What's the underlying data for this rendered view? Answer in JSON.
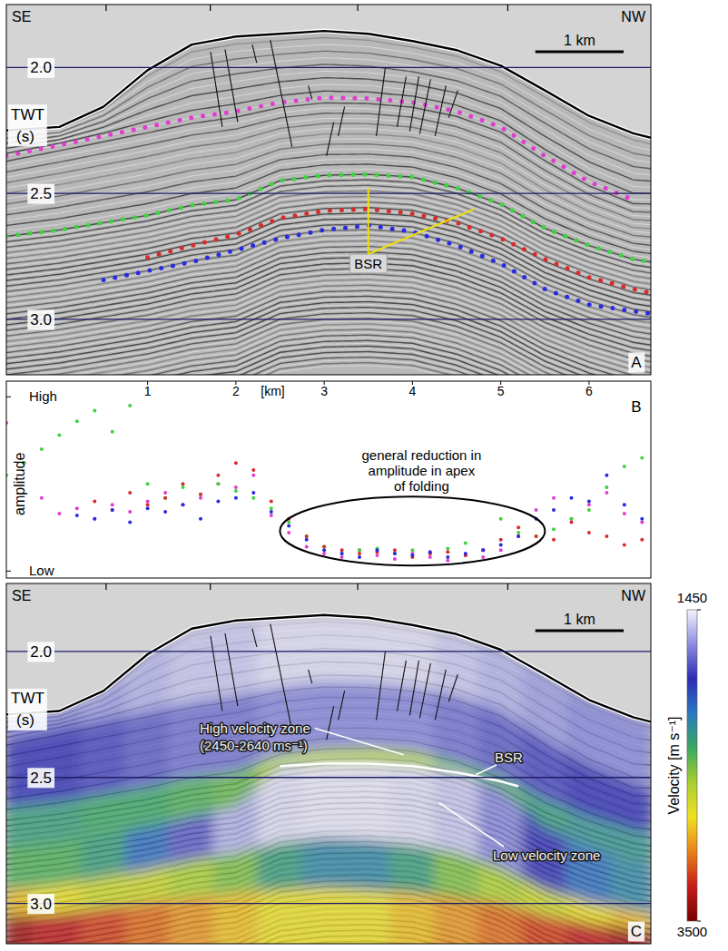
{
  "chart_data": [
    {
      "type": "section",
      "panel_label": "A",
      "direction_left": "SE",
      "direction_right": "NW",
      "y_label": "TWT (s)",
      "scale_bar": {
        "label": "1 km",
        "length": 1
      },
      "xlim": [
        -0.6,
        6.7
      ],
      "ylim": [
        1.75,
        3.22
      ],
      "xticks": [
        0.53,
        1.71,
        3.38,
        5.08
      ],
      "yticks": [
        {
          "value": 2,
          "label": "2.0"
        },
        {
          "value": 2.5,
          "label": "2.5"
        },
        {
          "value": 3,
          "label": "3.0"
        }
      ],
      "tick_labels": "y",
      "grid": true,
      "x": [
        -0.6,
        0,
        0.5,
        1,
        1.5,
        2,
        2.5,
        3,
        3.5,
        4,
        4.5,
        5,
        5.5,
        6,
        6.5,
        6.7
      ],
      "seafloor": [
        2.25,
        2.236,
        2.156,
        2.011,
        1.909,
        1.877,
        1.866,
        1.855,
        1.866,
        1.895,
        1.931,
        1.993,
        2.091,
        2.192,
        2.261,
        2.279
      ],
      "series": [
        {
          "color": "#e03cd0",
          "marker": "dot",
          "values": [
            2.351,
            2.308,
            2.272,
            2.236,
            2.199,
            2.174,
            2.138,
            2.12,
            2.123,
            2.138,
            2.174,
            2.236,
            2.351,
            2.453,
            2.525,
            null
          ]
        },
        {
          "color": "#3fd23f",
          "marker": "dot",
          "values": [
            2.67,
            2.645,
            2.616,
            2.587,
            2.547,
            2.525,
            2.449,
            2.428,
            2.424,
            2.435,
            2.478,
            2.543,
            2.638,
            2.707,
            2.761,
            2.772
          ]
        },
        {
          "color": "#d62c2c",
          "marker": "dot",
          "values": [
            null,
            null,
            null,
            2.754,
            2.707,
            2.663,
            2.598,
            2.569,
            2.562,
            2.58,
            2.616,
            2.678,
            2.761,
            2.833,
            2.88,
            2.895
          ]
        },
        {
          "color": "#2a2ae0",
          "marker": "dot",
          "values": [
            null,
            null,
            2.844,
            2.808,
            2.772,
            2.725,
            2.678,
            2.645,
            2.627,
            2.652,
            2.707,
            2.779,
            2.88,
            2.942,
            2.967,
            2.978
          ]
        }
      ],
      "faults": [
        [
          1.713,
          1.938,
          1.846,
          2.236
        ],
        [
          1.877,
          1.928,
          2.021,
          2.217
        ],
        [
          2.185,
          1.909,
          2.236,
          1.982
        ],
        [
          2.39,
          1.891,
          2.636,
          2.315
        ],
        [
          2.821,
          2.072,
          2.862,
          2.127
        ],
        [
          3.108,
          2.217,
          3.026,
          2.351
        ],
        [
          3.231,
          2.156,
          3.159,
          2.272
        ],
        [
          3.692,
          2.0,
          3.59,
          2.272
        ],
        [
          3.928,
          2.036,
          3.826,
          2.236
        ],
        [
          4.072,
          2.036,
          3.969,
          2.254
        ],
        [
          4.205,
          2.047,
          4.082,
          2.264
        ],
        [
          4.379,
          2.072,
          4.256,
          2.272
        ],
        [
          4.513,
          2.091,
          4.41,
          2.199
        ]
      ],
      "annotations": [
        {
          "text": "BSR",
          "x": [
            3.5,
            4.7
          ],
          "y": [
            2.478,
            2.562
          ]
        }
      ]
    },
    {
      "type": "scatter",
      "panel_label": "B",
      "x_label": "[km]",
      "y_label": "amplitude",
      "xlim": [
        -0.6,
        6.7
      ],
      "ylim": [
        -0.04,
        1.09
      ],
      "xticks": [
        1,
        2,
        3,
        4,
        5,
        6
      ],
      "yticks": [
        {
          "value": 0,
          "label": "Low"
        },
        {
          "value": 1,
          "label": "High"
        }
      ],
      "tick_labels": true,
      "x": [
        -0.6,
        -0.4,
        -0.2,
        0,
        0.2,
        0.4,
        0.6,
        0.8,
        1,
        1.2,
        1.4,
        1.6,
        1.8,
        2,
        2.2,
        2.4,
        2.6,
        2.8,
        3,
        3.2,
        3.4,
        3.6,
        3.8,
        4,
        4.2,
        4.4,
        4.6,
        4.8,
        5,
        5.2,
        5.4,
        5.6,
        5.8,
        6,
        6.2,
        6.4,
        6.6
      ],
      "series": [
        {
          "color": "#e03cd0",
          "marker": "dot",
          "values": [
            0.85,
            0.62,
            0.42,
            0.33,
            0.36,
            0.3,
            0.38,
            0.34,
            0.4,
            0.45,
            0.38,
            0.42,
            0.5,
            0.48,
            0.55,
            0.32,
            0.22,
            0.14,
            0.1,
            0.08,
            0.12,
            0.09,
            0.07,
            0.1,
            0.08,
            0.06,
            0.09,
            0.08,
            0.12,
            0.2,
            0.35,
            0.42,
            0.3,
            0.38,
            0.45,
            0.33,
            0.28
          ]
        },
        {
          "color": "#3fd23f",
          "marker": "dot",
          "values": [
            0.55,
            0.62,
            0.7,
            0.78,
            0.86,
            0.92,
            0.8,
            0.95,
            0.5,
            0.42,
            0.48,
            0.44,
            0.5,
            0.46,
            0.42,
            0.36,
            0.28,
            0.2,
            0.14,
            0.1,
            0.12,
            0.13,
            0.1,
            0.12,
            0.1,
            0.13,
            0.16,
            0.12,
            0.3,
            0.22,
            0.2,
            0.24,
            0.3,
            0.35,
            0.48,
            0.6,
            0.65
          ]
        },
        {
          "color": "#d62c2c",
          "marker": "dot",
          "values": [
            null,
            null,
            null,
            null,
            null,
            0.4,
            0.35,
            0.45,
            0.38,
            0.42,
            0.5,
            0.44,
            0.55,
            0.62,
            0.58,
            0.4,
            0.3,
            0.2,
            0.14,
            0.12,
            0.1,
            0.11,
            0.12,
            0.08,
            0.1,
            0.11,
            0.09,
            0.12,
            0.18,
            0.25,
            0.2,
            0.18,
            0.28,
            0.22,
            0.2,
            0.15,
            0.18
          ]
        },
        {
          "color": "#2a2ae0",
          "marker": "dot",
          "values": [
            null,
            null,
            null,
            null,
            0.32,
            0.3,
            0.35,
            0.28,
            0.36,
            0.34,
            0.38,
            0.3,
            0.4,
            0.42,
            0.45,
            0.34,
            0.26,
            0.18,
            0.12,
            0.1,
            0.08,
            0.12,
            0.1,
            0.09,
            0.11,
            0.08,
            0.1,
            0.12,
            0.15,
            0.2,
            0.3,
            0.35,
            0.42,
            0.4,
            0.55,
            0.38,
            0.3
          ]
        }
      ],
      "annotations": [
        {
          "text": "general reduction in amplitude in apex of folding",
          "x": 4.0,
          "y": 0.23
        }
      ]
    },
    {
      "type": "section",
      "panel_label": "C",
      "direction_left": "SE",
      "direction_right": "NW",
      "y_label": "TWT (s)",
      "scale_bar": {
        "label": "1 km",
        "length": 1
      },
      "xlim": [
        -0.6,
        6.7
      ],
      "ylim": [
        1.73,
        3.16
      ],
      "xticks": [
        0.53,
        1.71,
        3.38,
        5.08
      ],
      "yticks": [
        {
          "value": 2,
          "label": "2.0"
        },
        {
          "value": 2.5,
          "label": "2.5"
        },
        {
          "value": 3,
          "label": "3.0"
        }
      ],
      "tick_labels": "y",
      "grid": true,
      "x": [
        -0.6,
        0,
        0.5,
        1,
        1.5,
        2,
        2.5,
        3,
        3.5,
        4,
        4.5,
        5,
        5.5,
        6,
        6.5,
        6.7
      ],
      "velocity_layers": [
        {
          "base": [
            2.351,
            2.308,
            2.272,
            2.236,
            2.199,
            2.174,
            2.138,
            2.12,
            2.123,
            2.138,
            2.174,
            2.236,
            2.351,
            2.453,
            2.525,
            2.55
          ],
          "velocity": [
            1700,
            1700,
            1650,
            1600,
            1550,
            1550,
            1500,
            1500,
            1500,
            1500,
            1550,
            1600,
            1650,
            1700,
            1700,
            1700
          ]
        },
        {
          "base": [
            2.62,
            2.6,
            2.57,
            2.54,
            2.5,
            2.48,
            2.41,
            2.39,
            2.385,
            2.395,
            2.44,
            2.5,
            2.59,
            2.66,
            2.71,
            2.72
          ],
          "velocity": [
            1900,
            1900,
            1850,
            1800,
            1750,
            1750,
            1700,
            1700,
            1700,
            1700,
            1750,
            1800,
            1850,
            1900,
            1900,
            1900
          ]
        },
        {
          "base": [
            2.78,
            2.76,
            2.73,
            2.7,
            2.66,
            2.62,
            2.46,
            2.445,
            2.445,
            2.455,
            2.48,
            2.55,
            2.7,
            2.78,
            2.84,
            2.85
          ],
          "velocity": [
            2300,
            2300,
            2350,
            2350,
            2400,
            2450,
            2600,
            2640,
            2640,
            2600,
            2450,
            2400,
            2300,
            2250,
            2250,
            2250
          ]
        },
        {
          "base": [
            2.95,
            2.93,
            2.9,
            2.87,
            2.83,
            2.8,
            2.76,
            2.74,
            2.75,
            2.77,
            2.8,
            2.86,
            2.95,
            3.0,
            3.03,
            3.04
          ],
          "velocity": [
            2400,
            2400,
            2300,
            2100,
            1800,
            1600,
            1500,
            1480,
            1480,
            1500,
            1550,
            1700,
            1900,
            2100,
            2200,
            2200
          ]
        },
        {
          "base": [
            3.05,
            3.04,
            3.02,
            3.0,
            2.98,
            2.96,
            2.95,
            2.94,
            2.95,
            2.96,
            2.98,
            3.0,
            3.05,
            3.08,
            3.1,
            3.1
          ],
          "velocity": [
            2900,
            2800,
            2700,
            2700,
            2600,
            2500,
            2300,
            2200,
            2200,
            2300,
            2500,
            2600,
            2700,
            2800,
            2900,
            2900
          ]
        },
        {
          "base": [
            3.2,
            3.2,
            3.2,
            3.2,
            3.2,
            3.2,
            3.2,
            3.2,
            3.2,
            3.2,
            3.2,
            3.2,
            3.2,
            3.2,
            3.2,
            3.2
          ],
          "velocity": [
            3400,
            3300,
            3200,
            3100,
            3000,
            2900,
            2800,
            2800,
            2800,
            2900,
            3000,
            3100,
            3200,
            3300,
            3400,
            3400
          ]
        }
      ],
      "bsr": {
        "color": "#ffffff",
        "x": [
          2.5,
          3,
          3.5,
          4,
          4.5,
          5,
          5.2
        ],
        "values": [
          2.455,
          2.445,
          2.445,
          2.455,
          2.48,
          2.515,
          2.535
        ]
      },
      "colorbar": {
        "label": "Velocity [m s⁻¹]",
        "range": [
          1450,
          3500
        ],
        "ticks": [
          1450,
          3500
        ],
        "colors": [
          "#f6f4fc",
          "#8c8ce0",
          "#2c2cb4",
          "#2a78c0",
          "#3aa860",
          "#a8d030",
          "#f0e020",
          "#e88018",
          "#c81a1a",
          "#7a0000"
        ]
      },
      "annotations": [
        {
          "text": "High velocity zone"
        },
        {
          "text": "(2450-2640 ms⁻¹)"
        },
        {
          "text": "BSR"
        },
        {
          "text": "Low velocity zone"
        }
      ]
    }
  ]
}
